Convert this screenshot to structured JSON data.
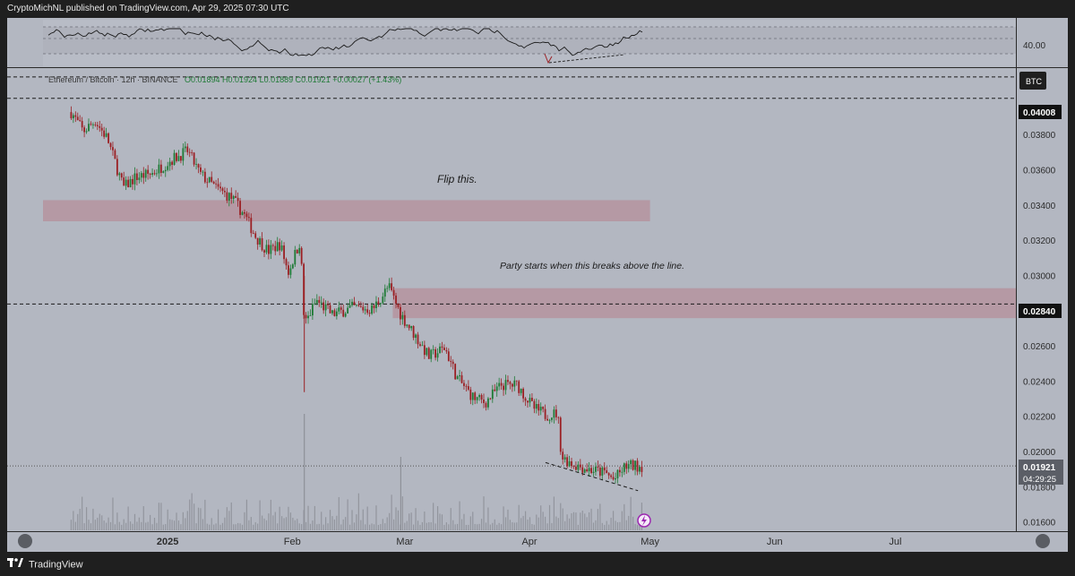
{
  "header": {
    "text": "CryptoMichNL published on TradingView.com, Apr 29, 2025 07:30 UTC"
  },
  "footer": {
    "brand": "TradingView"
  },
  "legend": {
    "symbol": "Ethereum / Bitcoin · 12h · BINANCE",
    "ohlc": "O0.01894  H0.01924  L0.01889  C0.01921  +0.00027 (+1.43%)"
  },
  "rsi": {
    "level_label": "40.00"
  },
  "annotations": {
    "flip": "Flip this.",
    "party": "Party starts when this breaks above the line."
  },
  "price_tags": {
    "btc": "BTC",
    "level_top": "0.04008",
    "level_mid": "0.02840",
    "last": "0.01921",
    "countdown": "04:29:25"
  },
  "colors": {
    "up": "#1e7a35",
    "down": "#9b1f23",
    "zone": "#b58f9a",
    "bg": "#b3b7c1"
  },
  "chart_data": {
    "type": "candlestick",
    "title": "Ethereum / Bitcoin · 12h · BINANCE",
    "y_ticks": [
      "0.03800",
      "0.03600",
      "0.03400",
      "0.03200",
      "0.03000",
      "0.02800",
      "0.02600",
      "0.02400",
      "0.02200",
      "0.02000",
      "0.01800",
      "0.01600"
    ],
    "x_ticks": [
      "2025",
      "Feb",
      "Mar",
      "Apr",
      "May",
      "Jun",
      "Jul"
    ],
    "ylim": [
      0.0155,
      0.0418
    ],
    "grid": false,
    "close_path": [
      {
        "x": "2024-12-08",
        "y": 0.0393
      },
      {
        "x": "2024-12-11",
        "y": 0.0382
      },
      {
        "x": "2024-12-14",
        "y": 0.0388
      },
      {
        "x": "2024-12-17",
        "y": 0.0378
      },
      {
        "x": "2024-12-21",
        "y": 0.035
      },
      {
        "x": "2024-12-24",
        "y": 0.0356
      },
      {
        "x": "2024-12-28",
        "y": 0.0358
      },
      {
        "x": "2025-01-02",
        "y": 0.0366
      },
      {
        "x": "2025-01-06",
        "y": 0.0371
      },
      {
        "x": "2025-01-09",
        "y": 0.0358
      },
      {
        "x": "2025-01-13",
        "y": 0.035
      },
      {
        "x": "2025-01-17",
        "y": 0.0344
      },
      {
        "x": "2025-01-20",
        "y": 0.0335
      },
      {
        "x": "2025-01-23",
        "y": 0.0322
      },
      {
        "x": "2025-01-26",
        "y": 0.0314
      },
      {
        "x": "2025-01-29",
        "y": 0.0318
      },
      {
        "x": "2025-01-31",
        "y": 0.0302
      },
      {
        "x": "2025-02-03",
        "y": 0.032
      },
      {
        "x": "2025-02-04",
        "y": 0.0272
      },
      {
        "x": "2025-02-07",
        "y": 0.0286
      },
      {
        "x": "2025-02-11",
        "y": 0.0278
      },
      {
        "x": "2025-02-16",
        "y": 0.0282
      },
      {
        "x": "2025-02-21",
        "y": 0.0281
      },
      {
        "x": "2025-02-25",
        "y": 0.0294
      },
      {
        "x": "2025-02-28",
        "y": 0.0278
      },
      {
        "x": "2025-03-03",
        "y": 0.0268
      },
      {
        "x": "2025-03-07",
        "y": 0.0254
      },
      {
        "x": "2025-03-11",
        "y": 0.0259
      },
      {
        "x": "2025-03-14",
        "y": 0.0242
      },
      {
        "x": "2025-03-18",
        "y": 0.0231
      },
      {
        "x": "2025-03-21",
        "y": 0.0228
      },
      {
        "x": "2025-03-25",
        "y": 0.0238
      },
      {
        "x": "2025-03-29",
        "y": 0.0238
      },
      {
        "x": "2025-04-02",
        "y": 0.0225
      },
      {
        "x": "2025-04-05",
        "y": 0.0221
      },
      {
        "x": "2025-04-08",
        "y": 0.0222
      },
      {
        "x": "2025-04-09",
        "y": 0.0197
      },
      {
        "x": "2025-04-12",
        "y": 0.0193
      },
      {
        "x": "2025-04-16",
        "y": 0.019
      },
      {
        "x": "2025-04-20",
        "y": 0.0188
      },
      {
        "x": "2025-04-22",
        "y": 0.0184
      },
      {
        "x": "2025-04-25",
        "y": 0.0192
      },
      {
        "x": "2025-04-29",
        "y": 0.01921
      }
    ],
    "levels": [
      0.04008,
      0.0284,
      0.0413
    ],
    "zones": [
      {
        "from": "2024-12-01",
        "to": "2025-05-01",
        "low": 0.0331,
        "high": 0.0343
      },
      {
        "from": "2025-02-26",
        "to": "2025-08-05",
        "low": 0.0276,
        "high": 0.0293
      }
    ],
    "trendlines": [
      {
        "from": {
          "x": "2025-04-05",
          "y": 0.0194
        },
        "to": {
          "x": "2025-04-28",
          "y": 0.0178
        }
      }
    ],
    "volume_scale": [
      0,
      1
    ]
  }
}
